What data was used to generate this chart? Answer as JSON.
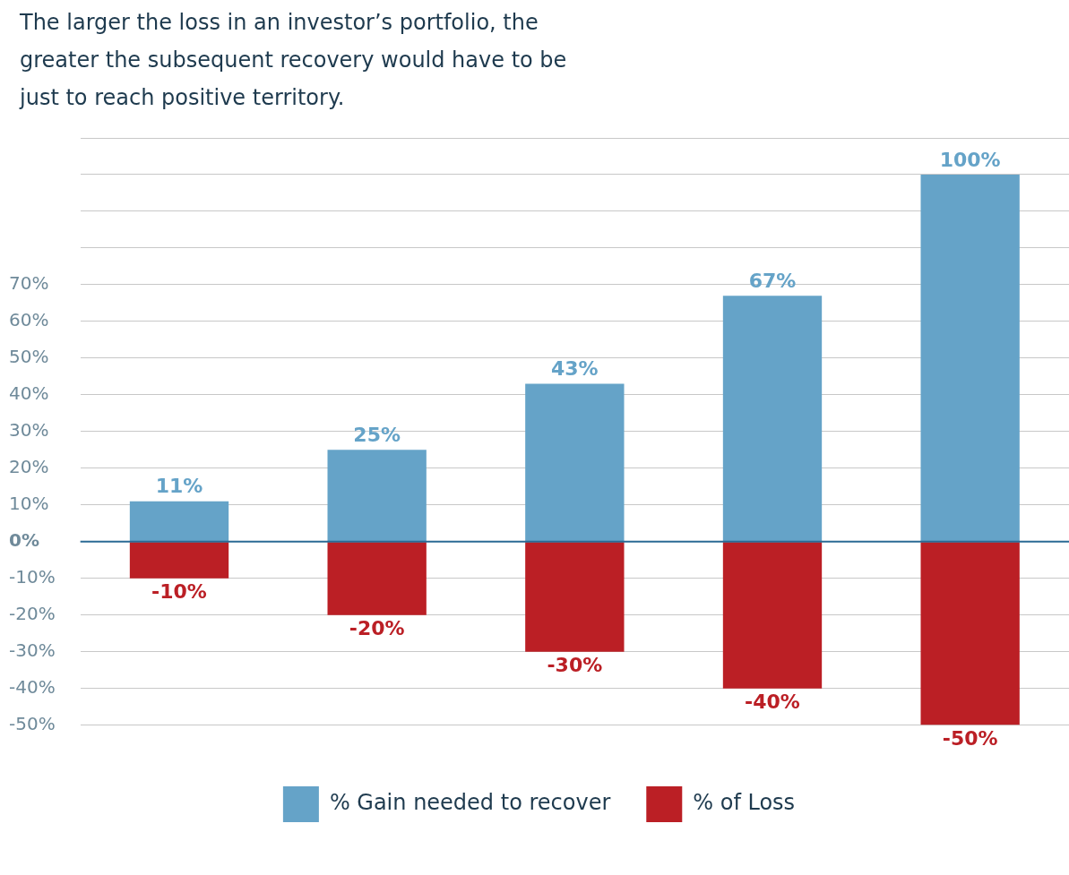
{
  "chart_data": {
    "type": "bar",
    "title": "The larger the loss in an investor’s portfolio, the greater the subsequent recovery would have to be just to reach positive territory.",
    "categories": [
      null,
      null,
      null,
      null,
      null
    ],
    "stacked": true,
    "series": [
      {
        "name": "% Gain needed to recover",
        "color": "#65a3c8",
        "values": [
          11,
          25,
          43,
          67,
          100
        ],
        "value_labels": [
          "11%",
          "25%",
          "43%",
          "67%",
          "100%"
        ]
      },
      {
        "name": "% of Loss",
        "color": "#bb1f25",
        "values": [
          -10,
          -20,
          -30,
          -40,
          -50
        ],
        "value_labels": [
          "-10%",
          "-20%",
          "-30%",
          "-40%",
          "-50%"
        ]
      }
    ],
    "ylim": [
      -50,
      110
    ],
    "ref_lines": [
      {
        "axis": "y",
        "value": 0,
        "color": "#2a6a94"
      }
    ],
    "yticks": [
      {
        "value": -50,
        "label": "-50%"
      },
      {
        "value": -40,
        "label": "-40%"
      },
      {
        "value": -30,
        "label": "-30%"
      },
      {
        "value": -20,
        "label": "-20%"
      },
      {
        "value": -10,
        "label": "-10%"
      },
      {
        "value": 0,
        "label": "0%"
      },
      {
        "value": 10,
        "label": "10%"
      },
      {
        "value": 20,
        "label": "20%"
      },
      {
        "value": 30,
        "label": "30%"
      },
      {
        "value": 40,
        "label": "40%"
      },
      {
        "value": 50,
        "label": "50%"
      },
      {
        "value": 60,
        "label": "60%"
      },
      {
        "value": 70,
        "label": "70%"
      },
      {
        "value": 80,
        "label": null
      },
      {
        "value": 90,
        "label": null
      },
      {
        "value": 100,
        "label": null
      },
      {
        "value": 110,
        "label": null
      }
    ],
    "grid": "y",
    "legend": "bottom"
  }
}
